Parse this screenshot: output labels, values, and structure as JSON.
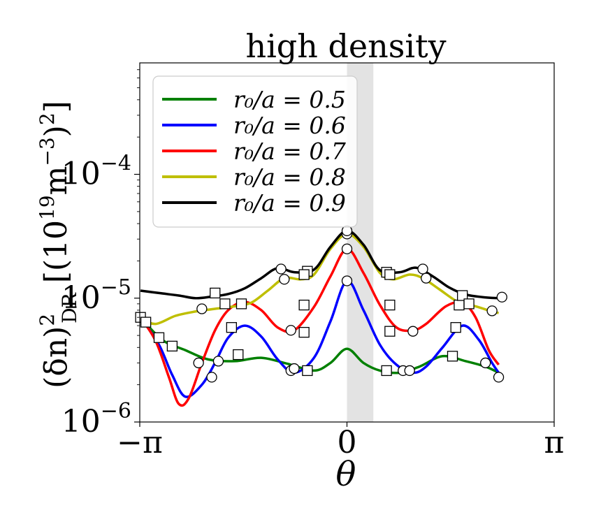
{
  "chart_data": {
    "type": "line",
    "title": "high density",
    "xlabel": "θ",
    "ylabel": "(δn)²_DR [(10¹⁹m⁻³)²]",
    "ylabel_parts": {
      "base": "(δn)",
      "sup": "2",
      "sub": "DR",
      "units_open": " [(10",
      "units_sup1": "19",
      "units_mid": "m",
      "units_sup2": "−3",
      "units_close": ")",
      "units_sup3": "2",
      "units_end": "]"
    },
    "xlim": [
      -3.14159,
      3.14159
    ],
    "ylim_log10": [
      -6,
      -3.1
    ],
    "x_ticks": [
      {
        "value": -3.14159,
        "label": "−π"
      },
      {
        "value": 0,
        "label": "0"
      },
      {
        "value": 3.14159,
        "label": "π"
      }
    ],
    "y_ticks": [
      {
        "exp": -6,
        "base": "10",
        "sup": "−6"
      },
      {
        "exp": -5,
        "base": "10",
        "sup": "−5"
      },
      {
        "exp": -4,
        "base": "10",
        "sup": "−4"
      }
    ],
    "shaded_band": {
      "x_from": 0.0,
      "x_to": 0.4,
      "color": "#d9d9d9"
    },
    "legend_position": "upper-left",
    "series": [
      {
        "name": "r0/a = 0.5",
        "legend_label": "r₀/a = 0.5",
        "color": "#008000",
        "x": [
          -3.13,
          -2.8,
          -2.45,
          -2.1,
          -1.7,
          -1.3,
          -0.9,
          -0.5,
          -0.25,
          0,
          0.25,
          0.5,
          0.8,
          1.1,
          1.45,
          1.8,
          2.1,
          2.3
        ],
        "y": [
          7e-06,
          4.6e-06,
          3.8e-06,
          3.2e-06,
          3.1e-06,
          3.3e-06,
          2.95e-06,
          2.6e-06,
          3e-06,
          3.9e-06,
          3e-06,
          2.6e-06,
          2.5e-06,
          2.8e-06,
          3.4e-06,
          3.1e-06,
          2.8e-06,
          2.5e-06
        ]
      },
      {
        "name": "r0/a = 0.6",
        "legend_label": "r₀/a = 0.6",
        "color": "#0000ff",
        "x": [
          -3.13,
          -2.85,
          -2.65,
          -2.45,
          -2.2,
          -2.0,
          -1.8,
          -1.55,
          -1.3,
          -1.05,
          -0.8,
          -0.5,
          -0.25,
          0,
          0.25,
          0.5,
          0.75,
          1.0,
          1.2,
          1.45,
          1.75,
          2.0,
          2.2,
          2.3
        ],
        "y": [
          7e-06,
          4.2e-06,
          2.4e-06,
          1.6e-06,
          2e-06,
          3e-06,
          4.8e-06,
          6e-06,
          4.9e-06,
          3.2e-06,
          2.5e-06,
          3.3e-06,
          6.5e-06,
          1.38e-05,
          8e-06,
          4.2e-06,
          2.9e-06,
          2.5e-06,
          2.8e-06,
          4e-06,
          6e-06,
          4.6e-06,
          3e-06,
          2.5e-06
        ]
      },
      {
        "name": "r0/a = 0.7",
        "legend_label": "r₀/a = 0.7",
        "color": "#ff0000",
        "x": [
          -3.13,
          -2.9,
          -2.7,
          -2.55,
          -2.4,
          -2.2,
          -2.0,
          -1.8,
          -1.55,
          -1.3,
          -1.05,
          -0.8,
          -0.5,
          -0.25,
          0,
          0.25,
          0.5,
          0.75,
          1.0,
          1.2,
          1.5,
          1.75,
          1.95,
          2.15,
          2.3
        ],
        "y": [
          7e-06,
          4.5e-06,
          2.3e-06,
          1.4e-06,
          1.55e-06,
          3e-06,
          5.5e-06,
          8e-06,
          9.3e-06,
          8e-06,
          5.8e-06,
          5.5e-06,
          8.5e-06,
          1.5e-05,
          2.5e-05,
          1.6e-05,
          8.8e-06,
          5.8e-06,
          5.5e-06,
          6.2e-06,
          8.6e-06,
          9.2e-06,
          7e-06,
          3.8e-06,
          2.9e-06
        ]
      },
      {
        "name": "r0/a = 0.8",
        "legend_label": "r₀/a = 0.8",
        "color": "#bfbf00",
        "x": [
          -3.13,
          -2.9,
          -2.6,
          -2.3,
          -2.0,
          -1.7,
          -1.45,
          -1.2,
          -0.95,
          -0.7,
          -0.5,
          -0.25,
          0,
          0.25,
          0.5,
          0.7,
          0.95,
          1.15,
          1.4,
          1.7,
          1.95,
          2.2,
          2.3
        ],
        "y": [
          6.8e-06,
          6.2e-06,
          7.2e-06,
          7.8e-06,
          8.2e-06,
          8.6e-06,
          9.2e-06,
          1.15e-05,
          1.45e-05,
          1.42e-05,
          1.55e-05,
          2.5e-05,
          3.3e-05,
          2.6e-05,
          1.6e-05,
          1.42e-05,
          1.55e-05,
          1.45e-05,
          1.18e-05,
          9.2e-06,
          8.6e-06,
          7.8e-06,
          7.6e-06
        ]
      },
      {
        "name": "r0/a = 0.9",
        "legend_label": "r₀/a = 0.9",
        "color": "#000000",
        "x": [
          -3.13,
          -2.85,
          -2.55,
          -2.3,
          -2.05,
          -1.8,
          -1.55,
          -1.3,
          -1.05,
          -0.8,
          -0.5,
          -0.25,
          0,
          0.25,
          0.5,
          0.8,
          1.05,
          1.3,
          1.55,
          1.8,
          2.05,
          2.3,
          2.4
        ],
        "y": [
          1.15e-05,
          1.1e-05,
          1.05e-05,
          1e-05,
          1.03e-05,
          1.08e-05,
          1.2e-05,
          1.45e-05,
          1.75e-05,
          1.62e-05,
          1.7e-05,
          2.6e-05,
          3.5e-05,
          2.7e-05,
          1.68e-05,
          1.62e-05,
          1.76e-05,
          1.5e-05,
          1.22e-05,
          1.07e-05,
          1.02e-05,
          1e-05,
          1e-05
        ]
      }
    ],
    "circle_markers": {
      "x": [
        -2.25,
        -2.2,
        -2.05,
        -1.95,
        -1.0,
        -0.95,
        -0.85,
        -0.85,
        0,
        0,
        0,
        0,
        0.85,
        0.95,
        1.0,
        1.15,
        1.2,
        2.1,
        2.2,
        2.3,
        2.35,
        -0.8
      ],
      "y": [
        3e-06,
        8.2e-06,
        2.3e-06,
        3.1e-06,
        1.72e-05,
        1.42e-05,
        5.5e-06,
        2.6e-06,
        1.38e-05,
        2.5e-05,
        3.3e-05,
        3.5e-05,
        2.6e-06,
        2.6e-06,
        5.4e-06,
        1.72e-05,
        1.45e-05,
        3e-06,
        7.9e-06,
        2.3e-06,
        1.02e-05,
        2.7e-06
      ]
    },
    "square_markers": {
      "x": [
        -3.13,
        -3.05,
        -2.85,
        -2.65,
        -2.0,
        -1.85,
        -1.75,
        -1.65,
        -1.6,
        -0.6,
        -0.65,
        -0.65,
        -0.65,
        -0.6,
        0.6,
        0.65,
        0.65,
        0.65,
        0.6,
        1.6,
        1.65,
        1.7,
        1.75,
        1.85
      ],
      "y": [
        7e-06,
        6.4e-06,
        4.8e-06,
        4.1e-06,
        1.1e-05,
        9e-06,
        5.8e-06,
        3.5e-06,
        9e-06,
        1.65e-05,
        1.55e-05,
        8.8e-06,
        5.3e-06,
        2.6e-06,
        1.62e-05,
        1.55e-05,
        8.8e-06,
        5.4e-06,
        2.6e-06,
        3.4e-06,
        5.8e-06,
        8.8e-06,
        1.05e-05,
        9e-06
      ]
    }
  }
}
